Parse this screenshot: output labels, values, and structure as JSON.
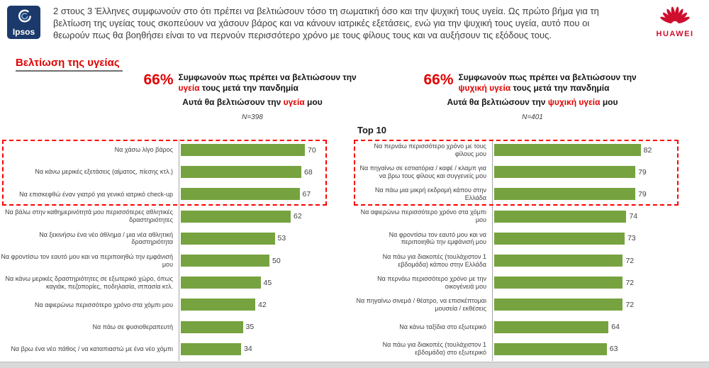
{
  "colors": {
    "bar_green": "#76A33F",
    "accent_red": "#E00000",
    "dash_red": "#FF0000",
    "ipsos_blue": "#1B3A6B",
    "huawei_red": "#CE0E2D"
  },
  "header": {
    "ipsos_logo_text": "Ipsos",
    "huawei_logo_text": "HUAWEI",
    "intro": "2 στους 3 Έλληνες συμφωνούν στο ότι πρέπει να βελτιώσουν τόσο τη σωματική όσο και την ψυχική τους υγεία. Ως πρώτο βήμα για τη βελτίωση της υγείας τους σκοπεύουν να χάσουν βάρος και να κάνουν ιατρικές εξετάσεις, ενώ για την ψυχική τους υγεία, αυτό που οι θεωρούν πως θα βοηθήσει είναι το να περνούν περισσότερο χρόνο με τους φίλους τους και να αυξήσουν τις εξόδους τους."
  },
  "section_title": "Βελτίωση της υγείας",
  "top10_label": "Top 10",
  "panels": [
    {
      "pct": "66%",
      "agree_pre": "Συμφωνούν πως πρέπει να βελτιώσουν την ",
      "agree_highlight": "υγεία",
      "agree_post": " τους μετά την πανδημία",
      "subtitle_pre": "Αυτά θα βελτιώσουν την ",
      "subtitle_highlight": "υγεία",
      "subtitle_post": " μου",
      "n_label": "N=398"
    },
    {
      "pct": "66%",
      "agree_pre": "Συμφωνούν πως πρέπει να βελτιώσουν την ",
      "agree_highlight": "ψυχική υγεία",
      "agree_post": " τους μετά την πανδημία",
      "subtitle_pre": "Αυτά θα βελτιώσουν την ",
      "subtitle_highlight": "ψυχική υγεία",
      "subtitle_post": " μου",
      "n_label": "N=401"
    }
  ],
  "chart_data": [
    {
      "type": "bar",
      "orientation": "horizontal",
      "title": "Αυτά θα βελτιώσουν την υγεία μου",
      "n_label": "N=398",
      "xlim": [
        0,
        80
      ],
      "grid": false,
      "highlight_top": 3,
      "categories": [
        "Να χάσω λίγο βάρος",
        "Να κάνω μερικές εξετάσεις (αίματος, πίεσης κτλ.)",
        "Να επισκεφθώ έναν γιατρό για γενικό ιατρικό check-up",
        "Να βάλω στην καθημερινότητά μου περισσότερες αθλητικές δραστηριότητες",
        "Να ξεκινήσω ένα νέο άθλημα / μια νέα αθλητική δραστηριότητα",
        "Να φροντίσω τον εαυτό μου και να περιποιηθώ την εμφάνισή μου",
        "Να κάνω μερικές δραστηριότητες σε εξωτερικό χώρο, όπως καγιάκ, πεζοπορίες, ποδηλασία, ιππασία κτλ.",
        "Να αφιερώνω περισσότερο χρόνο στα χόμπι μου",
        "Να πάω σε φυσιοθεραπευτή",
        "Να βρω ένα νέο πάθος / να καταπιαστώ με ένα νέο χόμπι"
      ],
      "values": [
        70,
        68,
        67,
        62,
        53,
        50,
        45,
        42,
        35,
        34
      ]
    },
    {
      "type": "bar",
      "orientation": "horizontal",
      "title": "Αυτά θα βελτιώσουν την ψυχική υγεία μου",
      "n_label": "N=401",
      "xlim": [
        0,
        100
      ],
      "grid": false,
      "highlight_top": 3,
      "categories": [
        "Να περνάω περισσότερο χρόνο με τους φίλους μου",
        "Να πηγαίνω σε εστιατόρια / καφέ / κλαμπ για να βρω τους φίλους και συγγενείς μου",
        "Να πάω μια μικρή εκδρομή κάπου στην Ελλάδα",
        "Να αφιερώνω περισσότερο χρόνο στα χόμπι μου",
        "Να φροντίσω τον εαυτό μου και να περιποιηθώ την εμφάνισή μου",
        "Να πάω για διακοπές (τουλάχιστον 1 εβδομάδα) κάπου στην Ελλάδα",
        "Να περνάω περισσότερο χρόνο με την οικογένειά μου",
        "Να πηγαίνω σινεμά / θέατρο, να επισκέπτομαι μουσεία / εκθέσεις",
        "Να κάνω ταξίδια στο εξωτερικό",
        "Να πάω για διακοπές (τουλάχιστον 1 εβδομάδα) στο εξωτερικό"
      ],
      "values": [
        82,
        79,
        79,
        74,
        73,
        72,
        72,
        72,
        64,
        63
      ]
    }
  ]
}
